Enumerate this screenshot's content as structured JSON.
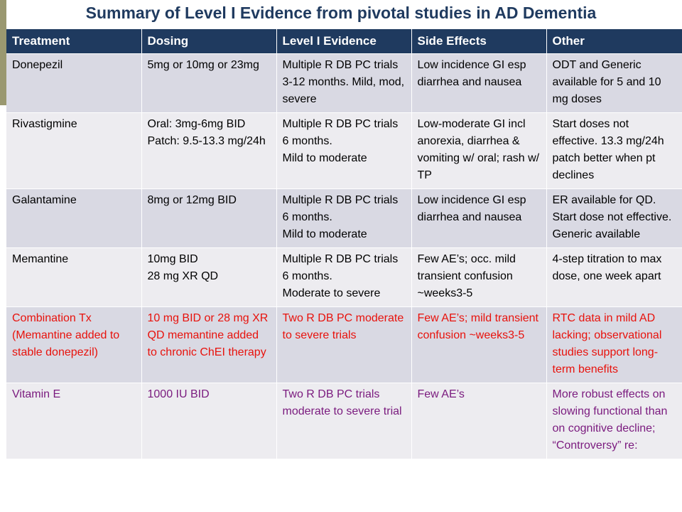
{
  "slide": {
    "title": "Summary of Level I Evidence from pivotal studies in AD Dementia"
  },
  "colors": {
    "header_bg": "#1f3a5f",
    "title_color": "#1f3a5f",
    "row_odd": "#d9d9e3",
    "row_even": "#edecf0",
    "highlight_red": "#e8120c",
    "highlight_purple": "#7a1a7e",
    "accent_bar": "#9a9870"
  },
  "table": {
    "headers": [
      "Treatment",
      "Dosing",
      "Level I Evidence",
      "Side Effects",
      "Other"
    ],
    "rows": [
      {
        "treatment": "Donepezil",
        "dosing": "5mg or 10mg or 23mg",
        "evidence": "Multiple R DB PC trials 3-12 months. Mild, mod, severe",
        "side_effects": "Low incidence GI esp diarrhea and nausea",
        "other": "ODT and Generic available for 5 and 10 mg doses"
      },
      {
        "treatment": "Rivastigmine",
        "dosing_line1": "Oral: 3mg-6mg BID",
        "dosing_line2": "Patch: 9.5-13.3 mg/24h",
        "evidence_line1": "Multiple R DB PC trials 6 months.",
        "evidence_line2": "Mild to moderate",
        "side_effects": "Low-moderate GI incl anorexia, diarrhea & vomiting w/ oral; rash w/ TP",
        "other": "Start doses not effective. 13.3 mg/24h patch better when pt declines"
      },
      {
        "treatment": "Galantamine",
        "dosing": "8mg or 12mg BID",
        "evidence_line1": "Multiple R DB PC trials 6 months.",
        "evidence_line2": "Mild to moderate",
        "side_effects": "Low incidence GI esp diarrhea and nausea",
        "other": "ER available for QD. Start dose not effective. Generic available"
      },
      {
        "treatment": "Memantine",
        "dosing_line1": "10mg BID",
        "dosing_line2": "28 mg XR QD",
        "evidence_line1": "Multiple R DB PC trials 6 months.",
        "evidence_line2": "Moderate to severe",
        "side_effects": "Few AE’s; occ. mild transient confusion ~weeks3-5",
        "other": "4-step titration to max dose, one week apart"
      },
      {
        "treatment": "Combination Tx (Memantine added to stable donepezil)",
        "dosing": "10 mg BID or 28 mg XR QD memantine added to chronic ChEI therapy",
        "evidence": "Two R DB PC moderate to severe trials",
        "side_effects": "Few AE’s; mild transient confusion ~weeks3-5",
        "other": "RTC data in mild AD lacking; observational studies support long-term benefits"
      },
      {
        "treatment": "Vitamin E",
        "dosing": "1000 IU BID",
        "evidence": "Two R DB PC trials moderate to severe trial",
        "side_effects": "Few AE’s",
        "other": "More robust effects on slowing functional than on cognitive decline; “Controversy” re:"
      }
    ]
  }
}
